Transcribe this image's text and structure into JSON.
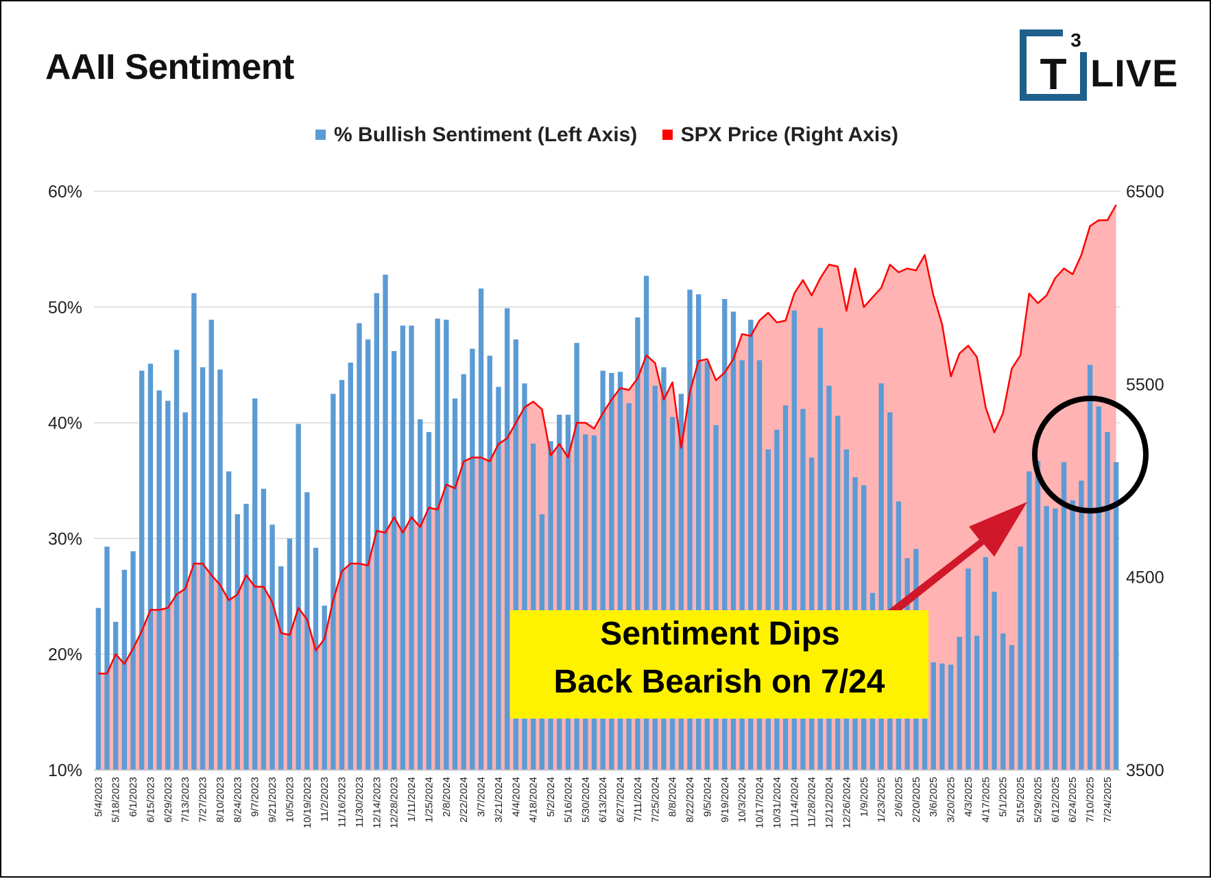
{
  "title": "AAII Sentiment",
  "logo": {
    "superscript": "3",
    "letter": "T",
    "word": "LIVE"
  },
  "legend": [
    {
      "label": "% Bullish Sentiment (Left Axis)",
      "color": "#5b9bd5"
    },
    {
      "label": "SPX Price (Right Axis)",
      "color": "#ff0000"
    }
  ],
  "callout": {
    "line1": "Sentiment Dips",
    "line2": "Back Bearish on 7/24"
  },
  "chart_data": {
    "type": "bar",
    "title": "AAII Sentiment",
    "ylabel_left": "% Bullish Sentiment",
    "ylabel_right": "SPX Price",
    "ylim_left": [
      10,
      60
    ],
    "ylim_right": [
      3500,
      6500
    ],
    "left_ticks": [
      "10%",
      "20%",
      "30%",
      "40%",
      "50%",
      "60%"
    ],
    "right_ticks": [
      "3500",
      "4500",
      "5500",
      "6500"
    ],
    "x_tick_labels": [
      "5/4/2023",
      "5/18/2023",
      "6/1/2023",
      "6/15/2023",
      "6/29/2023",
      "7/13/2023",
      "7/27/2023",
      "8/10/2023",
      "8/24/2023",
      "9/7/2023",
      "9/21/2023",
      "10/5/2023",
      "10/19/2023",
      "11/2/2023",
      "11/16/2023",
      "11/30/2023",
      "12/14/2023",
      "12/28/2023",
      "1/11/2024",
      "1/25/2024",
      "2/8/2024",
      "2/22/2024",
      "3/7/2024",
      "3/21/2024",
      "4/4/2024",
      "4/18/2024",
      "5/2/2024",
      "5/16/2024",
      "5/30/2024",
      "6/13/2024",
      "6/27/2024",
      "7/11/2024",
      "7/25/2024",
      "8/8/2024",
      "8/22/2024",
      "9/5/2024",
      "9/19/2024",
      "10/3/2024",
      "10/17/2024",
      "10/31/2024",
      "11/14/2024",
      "11/28/2024",
      "12/12/2024",
      "12/26/2024",
      "1/9/2025",
      "1/23/2025",
      "2/6/2025",
      "2/20/2025",
      "3/6/2025",
      "3/20/2025",
      "4/3/2025",
      "4/17/2025",
      "5/1/2025",
      "5/15/2025",
      "5/29/2025",
      "6/12/2025",
      "6/24/2025",
      "7/10/2025",
      "7/24/2025"
    ],
    "series": [
      {
        "name": "% Bullish Sentiment (Left Axis)",
        "type": "bar",
        "axis": "left",
        "color": "#5b9bd5",
        "values": [
          24.0,
          29.3,
          22.8,
          27.3,
          28.9,
          44.5,
          45.1,
          42.8,
          41.9,
          46.3,
          40.9,
          51.2,
          44.8,
          48.9,
          44.6,
          35.8,
          32.1,
          33.0,
          42.1,
          34.3,
          31.2,
          27.6,
          30.0,
          39.9,
          34.0,
          29.2,
          24.2,
          42.5,
          43.7,
          45.2,
          48.6,
          47.2,
          51.2,
          52.8,
          46.2,
          48.4,
          48.4,
          40.3,
          39.2,
          49.0,
          48.9,
          42.1,
          44.2,
          46.4,
          51.6,
          45.8,
          43.1,
          49.9,
          47.2,
          43.4,
          38.2,
          32.1,
          38.4,
          40.7,
          40.7,
          46.9,
          39.0,
          38.9,
          44.5,
          44.3,
          44.4,
          41.7,
          49.1,
          52.7,
          43.2,
          44.8,
          40.5,
          42.5,
          51.5,
          51.1,
          45.3,
          39.8,
          50.7,
          49.6,
          45.4,
          48.9,
          45.4,
          37.7,
          39.4,
          41.5,
          49.7,
          41.2,
          37.0,
          48.2,
          43.2,
          40.6,
          37.7,
          35.3,
          34.6,
          25.3,
          43.4,
          40.9,
          33.2,
          28.3,
          29.1,
          19.8,
          19.3,
          19.2,
          19.1,
          21.5,
          27.4,
          21.6,
          28.4,
          25.4,
          21.8,
          20.8,
          29.3,
          35.8,
          36.7,
          32.8,
          32.6,
          36.6,
          33.3,
          35.0,
          45.0,
          41.4,
          39.2,
          36.6
        ]
      },
      {
        "name": "SPX Price (Right Axis)",
        "type": "area",
        "axis": "right",
        "color": "#ff0000",
        "fill": "#ffb3b3",
        "values": [
          4000,
          4000,
          4100,
          4050,
          4130,
          4220,
          4330,
          4330,
          4340,
          4410,
          4440,
          4570,
          4570,
          4510,
          4460,
          4380,
          4410,
          4510,
          4450,
          4450,
          4370,
          4210,
          4200,
          4340,
          4280,
          4120,
          4180,
          4380,
          4530,
          4570,
          4570,
          4560,
          4740,
          4730,
          4810,
          4730,
          4810,
          4760,
          4860,
          4850,
          4980,
          4960,
          5100,
          5120,
          5120,
          5100,
          5190,
          5220,
          5300,
          5380,
          5410,
          5370,
          5130,
          5190,
          5120,
          5300,
          5300,
          5270,
          5350,
          5420,
          5480,
          5470,
          5530,
          5650,
          5610,
          5420,
          5510,
          5170,
          5460,
          5620,
          5630,
          5520,
          5560,
          5630,
          5760,
          5750,
          5830,
          5870,
          5820,
          5830,
          5970,
          6040,
          5960,
          6050,
          6120,
          6110,
          5880,
          6100,
          5900,
          5950,
          6000,
          6120,
          6080,
          6100,
          6090,
          6170,
          5960,
          5810,
          5540,
          5660,
          5700,
          5640,
          5380,
          5250,
          5350,
          5580,
          5650,
          5970,
          5920,
          5960,
          6050,
          6100,
          6070,
          6170,
          6320,
          6350,
          6350,
          6430
        ]
      }
    ],
    "annotations": [
      {
        "type": "text-box",
        "text": "Sentiment Dips Back Bearish on 7/24"
      },
      {
        "type": "circle",
        "target": "last bars"
      },
      {
        "type": "arrow",
        "target": "circle"
      }
    ]
  }
}
